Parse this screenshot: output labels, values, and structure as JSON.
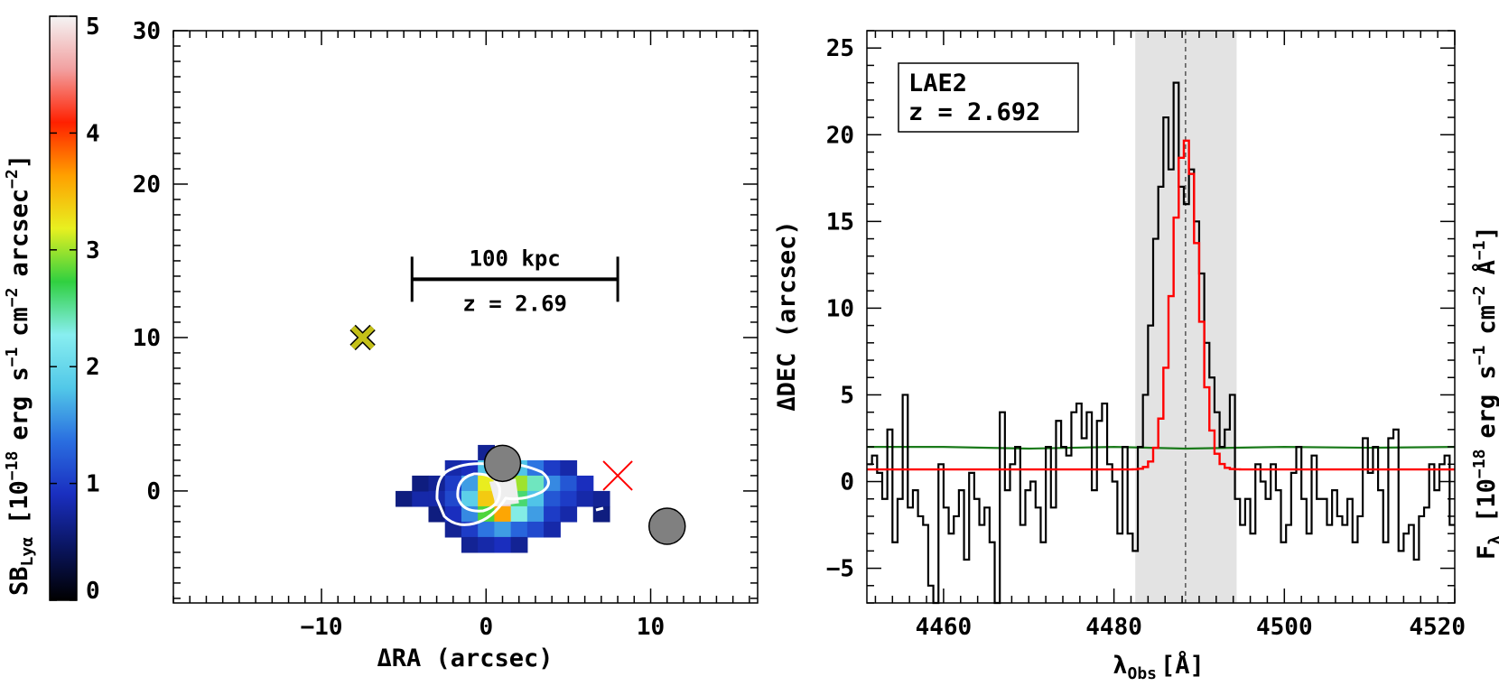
{
  "colorbar": {
    "label_main": "SB",
    "label_sub": "Lyα",
    "label_unit": "[10",
    "label_rest": "erg s",
    "label_rest2": "cm",
    "label_rest3": "arcsec",
    "exp_neg18": "−18",
    "exp_neg1": "−1",
    "exp_neg2": "−2",
    "close": "]",
    "range": [
      0,
      5
    ],
    "ticks": [
      "0",
      "1",
      "2",
      "3",
      "4",
      "5"
    ],
    "colormap": [
      "#000000",
      "#0a1560",
      "#1a2fc0",
      "#2a6ee0",
      "#52c8e8",
      "#88eef0",
      "#30d040",
      "#e8f020",
      "#ffa000",
      "#ff2000",
      "#f2a0a0",
      "#f4f4f4"
    ]
  },
  "chart_data": [
    {
      "type": "heatmap",
      "title": "",
      "xlabel": "ΔRA (arcsec)",
      "ylabel": "ΔDEC (arcsec)",
      "xlim": [
        -19,
        16.5
      ],
      "ylim": [
        -7.3,
        30
      ],
      "xticks": [
        "−10",
        "0",
        "10"
      ],
      "xtick_values": [
        -10,
        0,
        10
      ],
      "yticks": [
        "0",
        "10",
        "20",
        "30"
      ],
      "ytick_values": [
        0,
        10,
        20,
        30
      ],
      "scalebar": {
        "label_top": "100 kpc",
        "label_bottom": "z = 2.69",
        "x_start": -4.5,
        "x_end": 8.0,
        "y": 13.8
      },
      "markers": [
        {
          "kind": "yellow-cross",
          "x": -7.5,
          "y": 10.0
        },
        {
          "kind": "red-cross",
          "x": 8.0,
          "y": 1.0
        },
        {
          "kind": "gray-circle",
          "x": 1.0,
          "y": 1.8
        },
        {
          "kind": "gray-circle",
          "x": 11.0,
          "y": -2.3
        }
      ],
      "pixel_size": 1.0,
      "pixels": [
        [
          -5,
          -0.5,
          0.6
        ],
        [
          -4,
          -0.5,
          0.8
        ],
        [
          -4,
          0.5,
          0.6
        ],
        [
          -3,
          0.5,
          0.7
        ],
        [
          -3,
          -0.5,
          0.8
        ],
        [
          -3,
          -1.5,
          0.6
        ],
        [
          -2,
          1.5,
          0.8
        ],
        [
          -2,
          0.5,
          1.0
        ],
        [
          -2,
          -0.5,
          1.1
        ],
        [
          -2,
          -1.5,
          0.9
        ],
        [
          -2,
          -2.5,
          0.7
        ],
        [
          -1,
          1.5,
          0.9
        ],
        [
          -1,
          0.5,
          1.6
        ],
        [
          -1,
          -0.5,
          1.9
        ],
        [
          -1,
          -1.5,
          1.5
        ],
        [
          -1,
          -2.5,
          1.0
        ],
        [
          -1,
          -3.5,
          0.7
        ],
        [
          0,
          2.5,
          0.7
        ],
        [
          0,
          1.5,
          1.8
        ],
        [
          0,
          0.5,
          3.2
        ],
        [
          0,
          -0.5,
          3.4
        ],
        [
          0,
          -1.5,
          2.8
        ],
        [
          0,
          -2.5,
          1.4
        ],
        [
          0,
          -3.5,
          0.8
        ],
        [
          1,
          1.5,
          2.2
        ],
        [
          1,
          0.5,
          4.5
        ],
        [
          1,
          -0.5,
          4.8
        ],
        [
          1,
          -1.5,
          3.6
        ],
        [
          1,
          -2.5,
          1.6
        ],
        [
          1,
          -3.5,
          0.9
        ],
        [
          2,
          1.5,
          1.8
        ],
        [
          2,
          0.5,
          3.0
        ],
        [
          2,
          -0.5,
          2.6
        ],
        [
          2,
          -1.5,
          2.3
        ],
        [
          2,
          -2.5,
          1.3
        ],
        [
          2,
          -3.5,
          0.7
        ],
        [
          3,
          1.5,
          1.4
        ],
        [
          3,
          0.5,
          2.4
        ],
        [
          3,
          -0.5,
          1.8
        ],
        [
          3,
          -1.5,
          1.6
        ],
        [
          3,
          -2.5,
          1.1
        ],
        [
          4,
          1.5,
          1.0
        ],
        [
          4,
          0.5,
          1.5
        ],
        [
          4,
          -0.5,
          1.2
        ],
        [
          4,
          -1.5,
          1.0
        ],
        [
          4,
          -2.5,
          0.8
        ],
        [
          5,
          1.5,
          0.8
        ],
        [
          5,
          0.5,
          1.2
        ],
        [
          5,
          -0.5,
          1.0
        ],
        [
          5,
          -1.5,
          0.8
        ],
        [
          6,
          0.5,
          0.9
        ],
        [
          6,
          -0.5,
          0.8
        ],
        [
          7,
          -0.5,
          0.7
        ],
        [
          7,
          -1.5,
          0.6
        ]
      ]
    },
    {
      "type": "line",
      "title": "",
      "annotation_line1": "LAE2",
      "annotation_line2": "z = 2.692",
      "xlabel_main": "λ",
      "xlabel_sub": "Obs",
      "xlabel_unit": "[Å]",
      "ylabel_main": "F",
      "ylabel_sub": "λ",
      "ylabel_unit": "[10",
      "ylabel_rest": "erg s",
      "ylabel_rest2": "cm",
      "ylabel_rest3": "Å",
      "ylabel_exp18": "−18",
      "ylabel_exp1": "−1",
      "ylabel_exp2": "−2",
      "ylabel_close": "]",
      "xlim": [
        4451,
        4520
      ],
      "ylim": [
        -7,
        26
      ],
      "xticks": [
        "4460",
        "4480",
        "4500",
        "4520"
      ],
      "xtick_values": [
        4460,
        4480,
        4500,
        4520
      ],
      "yticks": [
        "−5",
        "0",
        "5",
        "10",
        "15",
        "20",
        "25"
      ],
      "ytick_values": [
        -5,
        0,
        5,
        10,
        15,
        20,
        25
      ],
      "shaded_band": [
        4482.5,
        4494.4
      ],
      "center_line": 4488.4,
      "series": [
        {
          "kind": "step",
          "color": "#000000",
          "bin_width": 0.6,
          "x": [
            4451.0,
            4451.6,
            4452.2,
            4452.8,
            4453.4,
            4454.0,
            4454.6,
            4455.2,
            4455.8,
            4456.4,
            4457.0,
            4457.6,
            4458.2,
            4458.8,
            4459.4,
            4460.0,
            4460.6,
            4461.2,
            4461.8,
            4462.4,
            4463.0,
            4463.6,
            4464.2,
            4464.8,
            4465.4,
            4466.0,
            4466.6,
            4467.2,
            4467.8,
            4468.4,
            4469.0,
            4469.6,
            4470.2,
            4470.8,
            4471.4,
            4472.0,
            4472.6,
            4473.2,
            4473.8,
            4474.4,
            4475.0,
            4475.6,
            4476.2,
            4476.8,
            4477.4,
            4478.0,
            4478.6,
            4479.2,
            4479.8,
            4480.4,
            4481.0,
            4481.6,
            4482.2,
            4482.8,
            4483.4,
            4484.0,
            4484.6,
            4485.2,
            4485.8,
            4486.4,
            4487.0,
            4487.6,
            4488.2,
            4488.8,
            4489.4,
            4490.0,
            4490.6,
            4491.2,
            4491.8,
            4492.4,
            4493.0,
            4493.6,
            4494.2,
            4494.8,
            4495.4,
            4496.0,
            4496.6,
            4497.2,
            4497.8,
            4498.4,
            4499.0,
            4499.6,
            4500.2,
            4500.8,
            4501.4,
            4502.0,
            4502.6,
            4503.2,
            4503.8,
            4504.4,
            4505.0,
            4505.6,
            4506.2,
            4506.8,
            4507.4,
            4508.0,
            4508.6,
            4509.2,
            4509.8,
            4510.4,
            4511.0,
            4511.6,
            4512.2,
            4512.8,
            4513.4,
            4514.0,
            4514.6,
            4515.2,
            4515.8,
            4516.4,
            4517.0,
            4517.6,
            4518.2,
            4518.8,
            4519.4
          ],
          "y": [
            1.0,
            1.5,
            0.5,
            -1.0,
            3.0,
            -3.5,
            -1.0,
            5.0,
            -1.5,
            -0.5,
            -2.0,
            -2.5,
            -6.0,
            -7.0,
            1.0,
            -1.5,
            -3.0,
            -2.0,
            -0.5,
            -4.5,
            0.5,
            -1.0,
            -2.5,
            -1.5,
            -3.5,
            -7.5,
            4.0,
            -0.5,
            1.0,
            2.0,
            -2.5,
            -0.5,
            0.0,
            -1.5,
            -3.5,
            2.0,
            -1.5,
            3.5,
            2.0,
            1.5,
            4.0,
            4.5,
            2.5,
            4.0,
            -0.5,
            3.5,
            4.5,
            1.0,
            0.0,
            -3.0,
            2.0,
            -3.0,
            -4.0,
            2.0,
            5.0,
            9.0,
            14.0,
            17.0,
            21.0,
            18.0,
            23.0,
            17.0,
            16.0,
            18.0,
            15.0,
            12.0,
            8.0,
            6.0,
            4.0,
            2.0,
            3.0,
            5.0,
            -1.0,
            -2.5,
            -1.0,
            -3.0,
            1.0,
            0.0,
            -1.0,
            1.0,
            -0.5,
            -3.5,
            -2.5,
            0.5,
            2.0,
            -1.0,
            -3.0,
            1.5,
            -1.0,
            -1.0,
            -2.5,
            -0.5,
            -2.0,
            -2.5,
            -1.0,
            -3.5,
            -2.0,
            2.5,
            0.5,
            2.0,
            -0.5,
            -3.5,
            2.5,
            3.0,
            -4.0,
            -3.0,
            -2.5,
            -4.5,
            -2.0,
            -1.5,
            1.0,
            -0.5,
            1.0,
            1.5,
            -2.5
          ]
        },
        {
          "kind": "gaussian-fit",
          "color": "#ff0000",
          "baseline": 0.7,
          "amplitude": 19.0,
          "center": 4488.4,
          "sigma": 1.5
        },
        {
          "kind": "noise",
          "color": "#1a7a1a",
          "x": [
            4451,
            4460,
            4470,
            4480,
            4488.4,
            4500,
            4510,
            4520
          ],
          "y": [
            2.0,
            2.0,
            1.9,
            2.0,
            1.9,
            2.0,
            1.95,
            2.0
          ]
        }
      ]
    }
  ]
}
